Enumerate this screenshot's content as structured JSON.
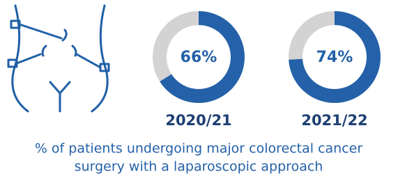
{
  "chart_data": [
    {
      "type": "pie",
      "donut": true,
      "title": "2020/21",
      "values": [
        66,
        34
      ],
      "value_label": "66%",
      "colors": [
        "#2461a8",
        "#d3d3d3"
      ]
    },
    {
      "type": "pie",
      "donut": true,
      "title": "2021/22",
      "values": [
        74,
        26
      ],
      "value_label": "74%",
      "colors": [
        "#2461a8",
        "#d3d3d3"
      ]
    }
  ],
  "caption": {
    "lines": [
      "% of patients undergoing major colorectal cancer",
      "surgery with a laparoscopic approach"
    ]
  }
}
